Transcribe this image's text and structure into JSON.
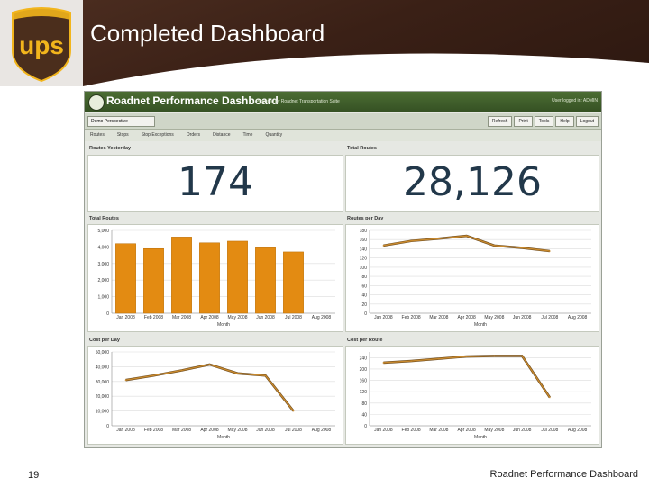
{
  "slide": {
    "title": "Completed Dashboard",
    "page_number": "19",
    "footer": "Roadnet Performance Dashboard"
  },
  "logo": {
    "text": "ups"
  },
  "app": {
    "title": "Roadnet Performance Dashboard",
    "subtitle": "Powered by Roadnet Transportation Suite",
    "user": "User logged in: ADMIN",
    "perspective": "Demo Perspective",
    "toolbar": [
      "Refresh",
      "Print",
      "Tools",
      "Help",
      "Logout"
    ],
    "tabs": [
      "Routes",
      "Stops",
      "Stop Exceptions",
      "Orders",
      "Distance",
      "Time",
      "Quantity"
    ]
  },
  "kpis": [
    {
      "title": "Routes Yesterday",
      "value": "174"
    },
    {
      "title": "Total Routes",
      "value": "28,126"
    }
  ],
  "chart_data": [
    {
      "type": "bar",
      "title": "Total Routes",
      "xlabel": "Month",
      "categories": [
        "Jan 2008",
        "Feb 2008",
        "Mar 2008",
        "Apr 2008",
        "May 2008",
        "Jun 2008",
        "Jul 2008",
        "Aug 2008"
      ],
      "values": [
        4200,
        3900,
        4600,
        4250,
        4350,
        3950,
        3700,
        null
      ],
      "yticks": [
        "5,000",
        "4,000",
        "3,000",
        "2,000",
        "1,000",
        "0"
      ],
      "ytick_values": [
        5000,
        4000,
        3000,
        2000,
        1000,
        0
      ],
      "ylim": [
        0,
        5000
      ],
      "color": "#e38b12"
    },
    {
      "type": "line",
      "title": "Routes per Day",
      "xlabel": "Month",
      "categories": [
        "Jan 2008",
        "Feb 2008",
        "Mar 2008",
        "Apr 2008",
        "May 2008",
        "Jun 2008",
        "Jul 2008",
        "Aug 2008"
      ],
      "values": [
        147,
        157,
        162,
        168,
        147,
        142,
        135,
        null
      ],
      "yticks": [
        "180",
        "160",
        "140",
        "120",
        "100",
        "80",
        "60",
        "40",
        "20",
        "0"
      ],
      "ytick_values": [
        180,
        160,
        140,
        120,
        100,
        80,
        60,
        40,
        20,
        0
      ],
      "ylim": [
        0,
        180
      ],
      "color": "#c98a2e"
    },
    {
      "type": "line",
      "title": "Cost per Day",
      "xlabel": "Month",
      "categories": [
        "Jan 2008",
        "Feb 2008",
        "Mar 2008",
        "Apr 2008",
        "May 2008",
        "Jun 2008",
        "Jul 2008",
        "Aug 2008"
      ],
      "values": [
        31000,
        34000,
        37500,
        41500,
        35500,
        34000,
        10000,
        null
      ],
      "yticks": [
        "50,000",
        "40,000",
        "30,000",
        "20,000",
        "10,000",
        "0"
      ],
      "ytick_values": [
        50000,
        40000,
        30000,
        20000,
        10000,
        0
      ],
      "ylim": [
        0,
        50000
      ],
      "color": "#c98a2e"
    },
    {
      "type": "line",
      "title": "Cost per Route",
      "xlabel": "Month",
      "categories": [
        "Jan 2008",
        "Feb 2008",
        "Mar 2008",
        "Apr 2008",
        "May 2008",
        "Jun 2008",
        "Jul 2008",
        "Aug 2008"
      ],
      "values": [
        222,
        228,
        236,
        244,
        246,
        246,
        100,
        null
      ],
      "yticks": [
        "240",
        "200",
        "160",
        "120",
        "80",
        "40",
        "0"
      ],
      "ytick_values": [
        240,
        200,
        160,
        120,
        80,
        40,
        0
      ],
      "ylim": [
        0,
        260
      ],
      "color": "#c98a2e"
    }
  ]
}
